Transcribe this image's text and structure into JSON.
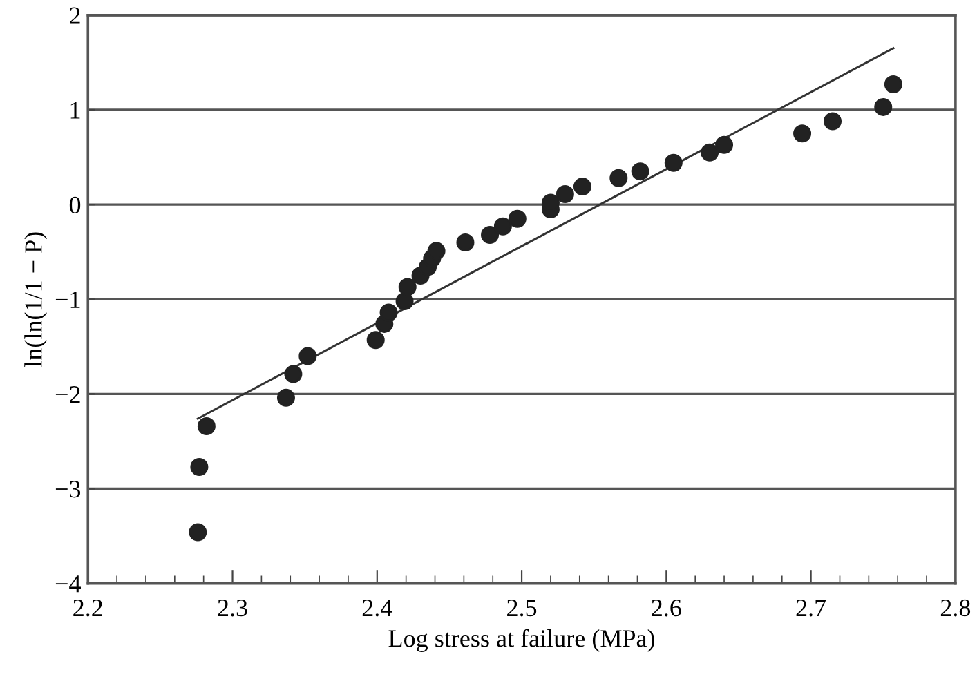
{
  "chart_data": {
    "type": "scatter",
    "xlabel": "Log stress at failure (MPa)",
    "ylabel": "ln(ln(1/1 − P)",
    "xlim": [
      2.2,
      2.8
    ],
    "xticks": [
      2.2,
      2.3,
      2.4,
      2.5,
      2.6,
      2.7,
      2.8
    ],
    "ylim": [
      -4,
      2
    ],
    "yticks": [
      {
        "value": -4,
        "label": "−4"
      },
      {
        "value": -3,
        "label": "−3"
      },
      {
        "value": -2,
        "label": "−2"
      },
      {
        "value": -1,
        "label": "−1"
      },
      0,
      1,
      2
    ],
    "grid": "y",
    "series": [
      {
        "marker": "circle",
        "color": "#222222",
        "x": [
          2.276,
          2.277,
          2.282,
          2.337,
          2.342,
          2.352,
          2.399,
          2.405,
          2.408,
          2.419,
          2.421,
          2.43,
          2.435,
          2.438,
          2.441,
          2.461,
          2.478,
          2.487,
          2.497,
          2.52,
          2.52,
          2.53,
          2.542,
          2.567,
          2.582,
          2.605,
          2.63,
          2.64,
          2.694,
          2.715,
          2.75,
          2.757
        ],
        "values": [
          -3.46,
          -2.77,
          -2.34,
          -2.04,
          -1.79,
          -1.6,
          -1.43,
          -1.26,
          -1.14,
          -1.02,
          -0.87,
          -0.75,
          -0.66,
          -0.57,
          -0.49,
          -0.4,
          -0.32,
          -0.23,
          -0.15,
          -0.05,
          0.02,
          0.11,
          0.19,
          0.28,
          0.35,
          0.44,
          0.55,
          0.63,
          0.75,
          0.88,
          1.03,
          1.27
        ]
      },
      {
        "type": "line",
        "color": "#333333",
        "line_style": "solid",
        "x": [
          2.276,
          2.757
        ],
        "values": [
          -2.26,
          1.65
        ]
      }
    ]
  }
}
